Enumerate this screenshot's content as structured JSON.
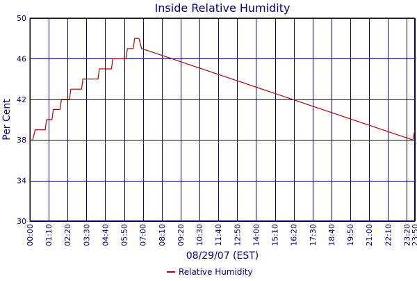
{
  "chart_data": {
    "type": "line",
    "title": "Inside Relative Humidity",
    "xlabel": "08/29/07 (EST)",
    "ylabel": "Per Cent",
    "ylim": [
      30,
      50
    ],
    "y_ticks": [
      30,
      34,
      38,
      42,
      46,
      50
    ],
    "x_unit": "minutes",
    "xlim": [
      0,
      1430
    ],
    "x_ticks": [
      {
        "value": 0,
        "label": "00:00"
      },
      {
        "value": 70,
        "label": "01:10"
      },
      {
        "value": 140,
        "label": "02:20"
      },
      {
        "value": 210,
        "label": "03:30"
      },
      {
        "value": 280,
        "label": "04:40"
      },
      {
        "value": 350,
        "label": "05:50"
      },
      {
        "value": 420,
        "label": "07:00"
      },
      {
        "value": 490,
        "label": "08:10"
      },
      {
        "value": 560,
        "label": "09:20"
      },
      {
        "value": 630,
        "label": "10:30"
      },
      {
        "value": 700,
        "label": "11:40"
      },
      {
        "value": 770,
        "label": "12:50"
      },
      {
        "value": 840,
        "label": "14:00"
      },
      {
        "value": 910,
        "label": "15:10"
      },
      {
        "value": 980,
        "label": "16:20"
      },
      {
        "value": 1050,
        "label": "17:30"
      },
      {
        "value": 1120,
        "label": "18:40"
      },
      {
        "value": 1190,
        "label": "19:50"
      },
      {
        "value": 1260,
        "label": "21:00"
      },
      {
        "value": 1330,
        "label": "22:10"
      },
      {
        "value": 1400,
        "label": "23:20"
      },
      {
        "value": 1430,
        "label": "23:50"
      }
    ],
    "grid": true,
    "legend": "bottom-center",
    "series": [
      {
        "name": "Relative Humidity",
        "color": "#b00000",
        "x": [
          0,
          10,
          15,
          20,
          57,
          62,
          82,
          87,
          112,
          117,
          147,
          152,
          192,
          197,
          253,
          258,
          303,
          308,
          357,
          362,
          384,
          389,
          405,
          415,
          1422,
          1430
        ],
        "y": [
          38,
          38,
          38.5,
          39,
          39,
          40,
          40,
          41,
          41,
          42,
          42,
          43,
          43,
          44,
          44,
          45,
          45,
          46,
          46,
          47,
          47,
          48,
          48,
          47,
          38,
          39
        ]
      }
    ]
  }
}
